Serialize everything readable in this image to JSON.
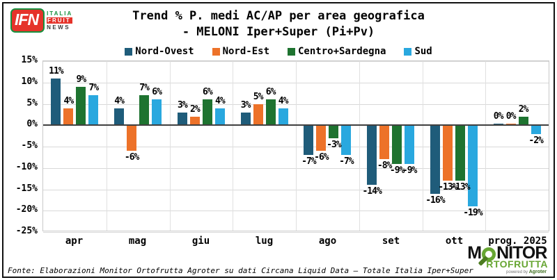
{
  "header": {
    "logo_ifn": {
      "acronym": "IFN",
      "italia": "ITALIA",
      "fruit": "FRUIT",
      "news": "NEWS"
    },
    "title_line1": "Trend % P. medi AC/AP per area geografica",
    "title_line2": "- MELONI Iper+Super (Pi+Pv)"
  },
  "chart_data": {
    "type": "bar",
    "title": "Trend % P. medi AC/AP per area geografica - MELONI Iper+Super (Pi+Pv)",
    "categories": [
      "apr",
      "mag",
      "giu",
      "lug",
      "ago",
      "set",
      "ott",
      "prog. 2025"
    ],
    "series": [
      {
        "name": "Nord-Ovest",
        "color": "#1f5c7a",
        "values": [
          11,
          4,
          3,
          3,
          -7,
          -14,
          -16,
          0
        ]
      },
      {
        "name": "Nord-Est",
        "color": "#ed7229",
        "values": [
          4,
          -6,
          2,
          5,
          -6,
          -8,
          -13,
          0
        ]
      },
      {
        "name": "Centro+Sardegna",
        "color": "#1e7330",
        "values": [
          9,
          7,
          6,
          6,
          -3,
          -9,
          -13,
          2
        ]
      },
      {
        "name": "Sud",
        "color": "#29a8df",
        "values": [
          7,
          6,
          4,
          4,
          -7,
          -9,
          -19,
          -2
        ]
      }
    ],
    "value_label_suffix": "%",
    "ylabel": "",
    "xlabel": "",
    "ylim": [
      -25,
      15
    ],
    "ytick_step": 5,
    "ytick_suffix": "%",
    "grid": true,
    "legend_position": "top",
    "zero_line_color": "#3f3f3f"
  },
  "footer": {
    "source": "Fonte: Elaborazioni Monitor Ortofrutta Agroter su dati Circana Liquid Data – Totale Italia Iper+Super",
    "logo_monitor": {
      "line1_m": "M",
      "line1_rest": "NITOR",
      "line2": "RTOFRUTTA",
      "powered_by": "powered by",
      "brand": "Agroter"
    }
  }
}
